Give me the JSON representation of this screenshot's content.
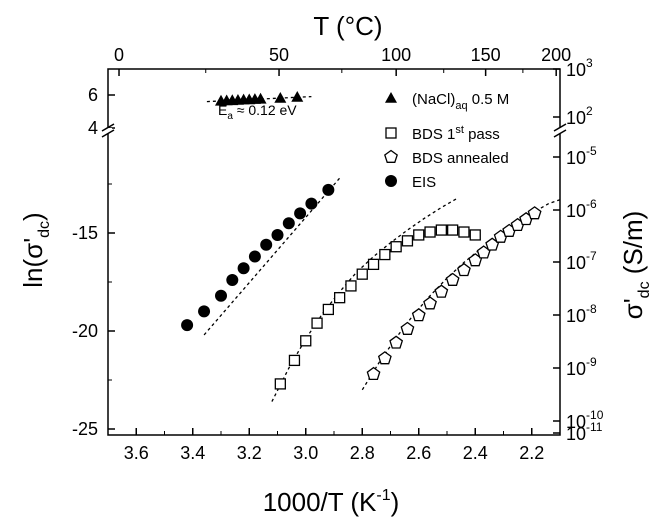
{
  "chart_data": {
    "type": "scatter",
    "x_axis": {
      "label_main": "1000/T (K",
      "label_sup": "-1",
      "label_end": ")",
      "range": [
        3.7,
        2.1
      ],
      "reversed": true,
      "ticks": [
        3.6,
        3.4,
        3.2,
        3.0,
        2.8,
        2.6,
        2.4,
        2.2
      ],
      "tick_labels": [
        "3.6",
        "3.4",
        "3.2",
        "3.0",
        "2.8",
        "2.6",
        "2.4",
        "2.2"
      ]
    },
    "top_axis": {
      "label": "T (°C)",
      "ticks": [
        0,
        50,
        100,
        150,
        200
      ],
      "tick_labels": [
        "0",
        "50",
        "100",
        "150",
        "200"
      ]
    },
    "y_axis": {
      "label_main": "ln(σ'",
      "label_sub": "dc",
      "label_end": ")",
      "lower_range": [
        -25.5,
        -10.5
      ],
      "lower_ticks": [
        -15,
        -20,
        -25
      ],
      "lower_tick_labels": [
        "-15",
        "-20",
        "-25"
      ],
      "upper_range": [
        3.6,
        6.7
      ],
      "upper_ticks": [
        6,
        4
      ],
      "upper_tick_labels": [
        "6",
        "4"
      ]
    },
    "right_axis": {
      "label_main": "σ'",
      "label_sub": "dc",
      "label_end": " (S/m)",
      "upper_ticks": [
        {
          "base": "10",
          "exp": "3"
        },
        {
          "base": "10",
          "exp": "2"
        }
      ],
      "lower_ticks": [
        {
          "base": "10",
          "exp": "-5"
        },
        {
          "base": "10",
          "exp": "-6"
        },
        {
          "base": "10",
          "exp": "-7"
        },
        {
          "base": "10",
          "exp": "-8"
        },
        {
          "base": "10",
          "exp": "-9"
        },
        {
          "base": "10",
          "exp": "-10"
        },
        {
          "base": "10",
          "exp": "-11"
        }
      ]
    },
    "series": [
      {
        "name_main": "(NaCl)",
        "name_sub": "aq",
        "name_end": " 0.5 M",
        "marker": "triangle",
        "panel": "upper",
        "x": [
          3.3,
          3.28,
          3.26,
          3.24,
          3.22,
          3.2,
          3.18,
          3.16,
          3.09,
          3.03
        ],
        "y": [
          5.65,
          5.67,
          5.68,
          5.7,
          5.72,
          5.73,
          5.75,
          5.77,
          5.82,
          5.88
        ]
      },
      {
        "name_main": "BDS 1",
        "name_sup": "st",
        "name_end": " pass",
        "marker": "square",
        "panel": "lower",
        "x": [
          3.09,
          3.04,
          3.0,
          2.96,
          2.92,
          2.88,
          2.84,
          2.8,
          2.76,
          2.72,
          2.68,
          2.64,
          2.6,
          2.56,
          2.52,
          2.48,
          2.44,
          2.4
        ],
        "y": [
          -22.7,
          -21.5,
          -20.5,
          -19.6,
          -18.9,
          -18.3,
          -17.7,
          -17.1,
          -16.6,
          -16.1,
          -15.7,
          -15.4,
          -15.1,
          -14.95,
          -14.85,
          -14.85,
          -14.95,
          -15.1
        ]
      },
      {
        "name_main": "BDS annealed",
        "marker": "pentagon",
        "panel": "lower",
        "x": [
          2.76,
          2.72,
          2.68,
          2.64,
          2.6,
          2.56,
          2.52,
          2.48,
          2.44,
          2.4,
          2.37,
          2.34,
          2.31,
          2.28,
          2.25,
          2.22,
          2.19
        ],
        "y": [
          -22.2,
          -21.4,
          -20.6,
          -19.9,
          -19.2,
          -18.6,
          -18.0,
          -17.4,
          -16.9,
          -16.4,
          -16.0,
          -15.6,
          -15.2,
          -14.9,
          -14.6,
          -14.3,
          -14.0
        ]
      },
      {
        "name_main": "EIS",
        "marker": "circle",
        "panel": "lower",
        "x": [
          3.42,
          3.36,
          3.3,
          3.26,
          3.22,
          3.18,
          3.14,
          3.1,
          3.06,
          3.02,
          2.98,
          2.92
        ],
        "y": [
          -19.7,
          -19.0,
          -18.2,
          -17.4,
          -16.8,
          -16.2,
          -15.6,
          -15.1,
          -14.5,
          -14.0,
          -13.5,
          -12.8
        ]
      }
    ],
    "fit_lines": [
      {
        "panel": "upper",
        "x": [
          3.35,
          2.98
        ],
        "y": [
          5.6,
          5.9
        ]
      },
      {
        "panel": "lower",
        "x": [
          3.36,
          2.88
        ],
        "y": [
          -20.2,
          -12.2
        ]
      },
      {
        "panel": "lower",
        "x": [
          3.12,
          3.06,
          3.0,
          2.94,
          2.88,
          2.82,
          2.76,
          2.7,
          2.64,
          2.58,
          2.52,
          2.46
        ],
        "y": [
          -23.6,
          -21.9,
          -20.4,
          -19.1,
          -18.0,
          -17.0,
          -16.2,
          -15.5,
          -14.85,
          -14.25,
          -13.7,
          -13.2
        ]
      },
      {
        "panel": "lower",
        "x": [
          2.8,
          2.74,
          2.68,
          2.62,
          2.56,
          2.5,
          2.44,
          2.38,
          2.32,
          2.26,
          2.2,
          2.14,
          2.1
        ],
        "y": [
          -23.0,
          -21.6,
          -20.35,
          -19.2,
          -18.2,
          -17.3,
          -16.5,
          -15.8,
          -15.15,
          -14.55,
          -14.0,
          -13.5,
          -13.3
        ]
      }
    ],
    "annotation": {
      "text_main": "E",
      "text_sub": "a",
      "text_end": " ≈ 0.12 eV"
    },
    "legend_placement": "top-right",
    "grid": false
  }
}
